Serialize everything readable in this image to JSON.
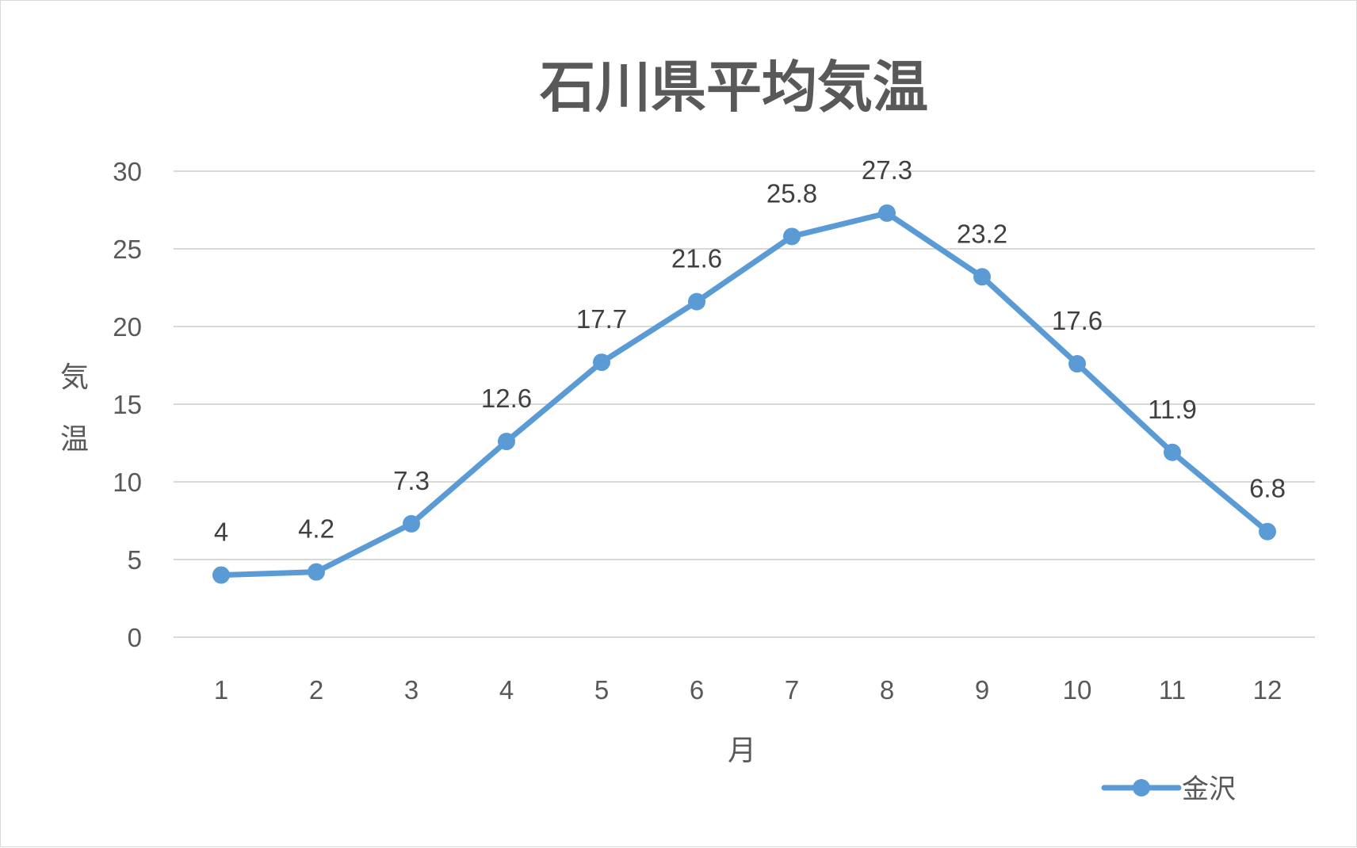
{
  "chart_data": {
    "type": "line",
    "title": "石川県平均気温",
    "xlabel": "月",
    "ylabel": "気温",
    "categories": [
      "1",
      "2",
      "3",
      "4",
      "5",
      "6",
      "7",
      "8",
      "9",
      "10",
      "11",
      "12"
    ],
    "series": [
      {
        "name": "金沢",
        "values": [
          4,
          4.2,
          7.3,
          12.6,
          17.7,
          21.6,
          25.8,
          27.3,
          23.2,
          17.6,
          11.9,
          6.8
        ],
        "labels": [
          "4",
          "4.2",
          "7.3",
          "12.6",
          "17.7",
          "21.6",
          "25.8",
          "27.3",
          "23.2",
          "17.6",
          "11.9",
          "6.8"
        ],
        "color": "#5b9bd5"
      }
    ],
    "ylim": [
      0,
      30
    ],
    "yticks": [
      "0",
      "5",
      "10",
      "15",
      "20",
      "25",
      "30"
    ],
    "grid": true,
    "legend": "bottom-right",
    "colors": {
      "gridline": "#d9d9d9",
      "text": "#595959",
      "label": "#404040"
    }
  }
}
